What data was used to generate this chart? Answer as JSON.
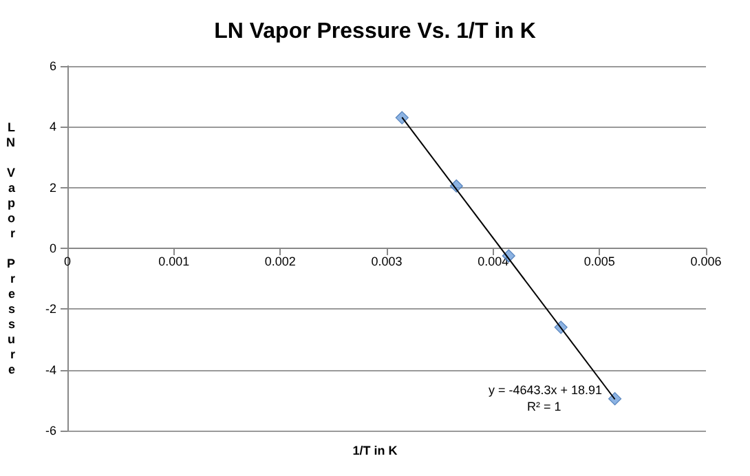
{
  "chart_data": {
    "type": "scatter",
    "title": "LN Vapor Pressure Vs. 1/T in K",
    "xlabel": "1/T in K",
    "ylabel": "LN Vapor Pressure",
    "x": [
      0.003144,
      0.003655,
      0.004146,
      0.004637,
      0.005144
    ],
    "series": [
      {
        "color": "#6fa0dc",
        "marker": "diamond",
        "values": [
          4.3,
          2.05,
          -0.25,
          -2.6,
          -4.95
        ]
      },
      {
        "type": "line",
        "color": "#000000",
        "marker": "none",
        "x": [
          0.003144,
          0.005144
        ],
        "values": [
          4.31,
          -4.97
        ]
      }
    ],
    "xlim": [
      0,
      0.006
    ],
    "xticks": [
      0,
      0.001,
      0.002,
      0.003,
      0.004,
      0.005,
      0.006
    ],
    "ylim": [
      -6,
      6
    ],
    "yticks": [
      -6,
      -4,
      -2,
      0,
      2,
      4,
      6
    ],
    "grid": "y",
    "annotations": [
      "y = -4643.3x + 18.91",
      "R² = 1"
    ]
  }
}
